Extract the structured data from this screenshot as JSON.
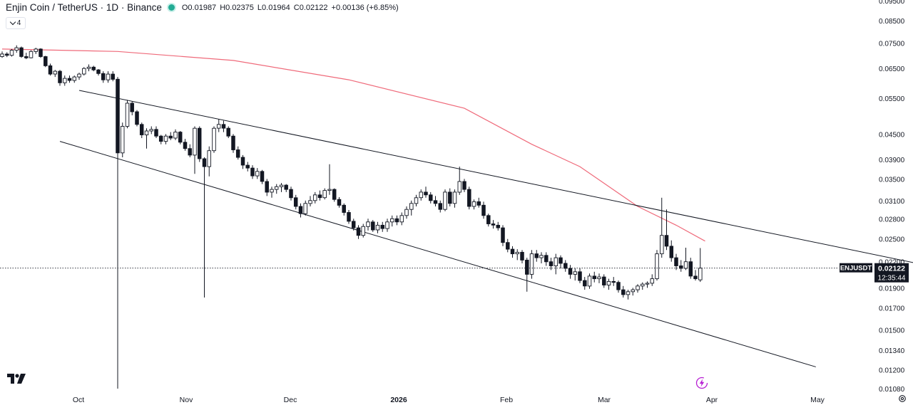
{
  "header": {
    "title": "Enjin Coin / TetherUS · 1D · Binance",
    "open": "O0.01987",
    "high": "H0.02375",
    "low": "L0.01964",
    "close": "C0.02122",
    "change": "+0.00136 (+6.85%)",
    "indicator_count": "4"
  },
  "price_label": {
    "symbol": "ENJUSDT",
    "price": "0.02122",
    "countdown": "12:35:44"
  },
  "colors": {
    "ma": "#ef6a7a",
    "accent": "#22ab94",
    "lines": "#131722",
    "bolt": "#b71fd3"
  },
  "icons": {
    "logo": "tradingview-logo-icon",
    "bolt": "lightning-icon",
    "settings": "gear-icon"
  },
  "chart_data": {
    "type": "candlestick",
    "y_scale": "log",
    "y_ticks": [
      "0.09500",
      "0.08500",
      "0.07500",
      "0.06500",
      "0.05500",
      "0.04500",
      "0.03900",
      "0.03500",
      "0.03100",
      "0.02800",
      "0.02500",
      "0.02200",
      "0.01900",
      "0.01700",
      "0.01500",
      "0.01340",
      "0.01200",
      "0.01080"
    ],
    "x_ticks": [
      "Oct",
      "Nov",
      "Dec",
      "2026",
      "Feb",
      "Mar",
      "Apr",
      "May"
    ],
    "candles": [
      [
        0.0695,
        0.0715,
        0.069,
        0.0705
      ],
      [
        0.0705,
        0.0712,
        0.0693,
        0.07
      ],
      [
        0.07,
        0.0725,
        0.0695,
        0.072
      ],
      [
        0.072,
        0.074,
        0.071,
        0.073
      ],
      [
        0.073,
        0.0735,
        0.069,
        0.0695
      ],
      [
        0.0695,
        0.071,
        0.0685,
        0.069
      ],
      [
        0.069,
        0.072,
        0.0688,
        0.0715
      ],
      [
        0.0715,
        0.073,
        0.0705,
        0.0725
      ],
      [
        0.0725,
        0.0728,
        0.069,
        0.0695
      ],
      [
        0.0695,
        0.0698,
        0.0655,
        0.066
      ],
      [
        0.066,
        0.0668,
        0.0625,
        0.063
      ],
      [
        0.063,
        0.0645,
        0.062,
        0.064
      ],
      [
        0.064,
        0.0645,
        0.059,
        0.06
      ],
      [
        0.06,
        0.0625,
        0.059,
        0.0615
      ],
      [
        0.0615,
        0.0625,
        0.06,
        0.0608
      ],
      [
        0.0608,
        0.0625,
        0.06,
        0.062
      ],
      [
        0.062,
        0.0635,
        0.061,
        0.063
      ],
      [
        0.063,
        0.0655,
        0.0625,
        0.065
      ],
      [
        0.065,
        0.0665,
        0.064,
        0.0655
      ],
      [
        0.0655,
        0.066,
        0.064,
        0.0645
      ],
      [
        0.0645,
        0.0648,
        0.0625,
        0.0632
      ],
      [
        0.0632,
        0.064,
        0.06,
        0.061
      ],
      [
        0.061,
        0.064,
        0.06,
        0.063
      ],
      [
        0.063,
        0.064,
        0.0605,
        0.0612
      ],
      [
        0.0612,
        0.062,
        0.0108,
        0.0405
      ],
      [
        0.0405,
        0.048,
        0.0395,
        0.047
      ],
      [
        0.047,
        0.0545,
        0.0465,
        0.0535
      ],
      [
        0.0535,
        0.054,
        0.05,
        0.051
      ],
      [
        0.051,
        0.0515,
        0.047,
        0.0475
      ],
      [
        0.0475,
        0.048,
        0.044,
        0.0448
      ],
      [
        0.0448,
        0.0465,
        0.0415,
        0.0458
      ],
      [
        0.0458,
        0.047,
        0.045,
        0.0462
      ],
      [
        0.0462,
        0.047,
        0.044,
        0.0445
      ],
      [
        0.0445,
        0.0448,
        0.0425,
        0.0432
      ],
      [
        0.0432,
        0.045,
        0.0425,
        0.0445
      ],
      [
        0.0445,
        0.0455,
        0.0435,
        0.044
      ],
      [
        0.044,
        0.0462,
        0.0435,
        0.0455
      ],
      [
        0.0455,
        0.0458,
        0.0425,
        0.043
      ],
      [
        0.043,
        0.0438,
        0.041,
        0.0415
      ],
      [
        0.0415,
        0.0425,
        0.0395,
        0.04
      ],
      [
        0.04,
        0.047,
        0.036,
        0.0465
      ],
      [
        0.0465,
        0.047,
        0.0385,
        0.0392
      ],
      [
        0.0392,
        0.0395,
        0.018,
        0.0375
      ],
      [
        0.0375,
        0.042,
        0.0355,
        0.041
      ],
      [
        0.041,
        0.047,
        0.0405,
        0.0465
      ],
      [
        0.0465,
        0.049,
        0.0455,
        0.0475
      ],
      [
        0.0475,
        0.0485,
        0.0455,
        0.0465
      ],
      [
        0.0465,
        0.047,
        0.044,
        0.0445
      ],
      [
        0.0445,
        0.045,
        0.0405,
        0.0412
      ],
      [
        0.0412,
        0.042,
        0.039,
        0.0395
      ],
      [
        0.0395,
        0.04,
        0.037,
        0.0378
      ],
      [
        0.0378,
        0.0385,
        0.0365,
        0.0372
      ],
      [
        0.0372,
        0.0378,
        0.035,
        0.0356
      ],
      [
        0.0356,
        0.0372,
        0.035,
        0.0365
      ],
      [
        0.0365,
        0.0368,
        0.034,
        0.0345
      ],
      [
        0.0345,
        0.035,
        0.0318,
        0.0325
      ],
      [
        0.0325,
        0.0335,
        0.0315,
        0.033
      ],
      [
        0.033,
        0.034,
        0.0322,
        0.0335
      ],
      [
        0.0335,
        0.0342,
        0.0325,
        0.0338
      ],
      [
        0.0338,
        0.034,
        0.0325,
        0.033
      ],
      [
        0.033,
        0.0335,
        0.031,
        0.0315
      ],
      [
        0.0315,
        0.032,
        0.0295,
        0.03
      ],
      [
        0.03,
        0.0305,
        0.0282,
        0.0288
      ],
      [
        0.0288,
        0.031,
        0.0285,
        0.0305
      ],
      [
        0.0305,
        0.0318,
        0.03,
        0.031
      ],
      [
        0.031,
        0.0325,
        0.0305,
        0.032
      ],
      [
        0.032,
        0.0328,
        0.031,
        0.0315
      ],
      [
        0.0315,
        0.0332,
        0.0312,
        0.0328
      ],
      [
        0.0328,
        0.038,
        0.032,
        0.033
      ],
      [
        0.033,
        0.0332,
        0.0308,
        0.0312
      ],
      [
        0.0312,
        0.0316,
        0.0298,
        0.0302
      ],
      [
        0.0302,
        0.0305,
        0.0285,
        0.029
      ],
      [
        0.029,
        0.0294,
        0.0272,
        0.0276
      ],
      [
        0.0276,
        0.028,
        0.0262,
        0.0266
      ],
      [
        0.0266,
        0.027,
        0.025,
        0.0255
      ],
      [
        0.0255,
        0.0272,
        0.0252,
        0.0268
      ],
      [
        0.0268,
        0.028,
        0.0262,
        0.0275
      ],
      [
        0.0275,
        0.0278,
        0.026,
        0.0263
      ],
      [
        0.0263,
        0.0275,
        0.0258,
        0.027
      ],
      [
        0.027,
        0.0275,
        0.026,
        0.0265
      ],
      [
        0.0265,
        0.028,
        0.026,
        0.0275
      ],
      [
        0.0275,
        0.0285,
        0.0268,
        0.028
      ],
      [
        0.028,
        0.0285,
        0.027,
        0.0275
      ],
      [
        0.0275,
        0.029,
        0.027,
        0.0285
      ],
      [
        0.0285,
        0.03,
        0.028,
        0.0295
      ],
      [
        0.0295,
        0.031,
        0.0285,
        0.0305
      ],
      [
        0.0305,
        0.032,
        0.03,
        0.0315
      ],
      [
        0.0315,
        0.033,
        0.031,
        0.0325
      ],
      [
        0.0325,
        0.0335,
        0.0315,
        0.032
      ],
      [
        0.032,
        0.0325,
        0.0305,
        0.031
      ],
      [
        0.031,
        0.0318,
        0.03,
        0.0305
      ],
      [
        0.0305,
        0.031,
        0.029,
        0.0295
      ],
      [
        0.0295,
        0.033,
        0.0292,
        0.0325
      ],
      [
        0.0325,
        0.0332,
        0.03,
        0.0305
      ],
      [
        0.0305,
        0.033,
        0.0298,
        0.0325
      ],
      [
        0.0325,
        0.0375,
        0.032,
        0.0345
      ],
      [
        0.0345,
        0.035,
        0.0325,
        0.033
      ],
      [
        0.033,
        0.0335,
        0.0295,
        0.03
      ],
      [
        0.03,
        0.0312,
        0.0295,
        0.0308
      ],
      [
        0.0308,
        0.0315,
        0.0298,
        0.0302
      ],
      [
        0.0302,
        0.0308,
        0.028,
        0.0285
      ],
      [
        0.0285,
        0.0288,
        0.0268,
        0.0272
      ],
      [
        0.0272,
        0.0278,
        0.0265,
        0.027
      ],
      [
        0.027,
        0.0275,
        0.0262,
        0.0266
      ],
      [
        0.0266,
        0.027,
        0.024,
        0.0245
      ],
      [
        0.0245,
        0.025,
        0.0232,
        0.0236
      ],
      [
        0.0236,
        0.024,
        0.0225,
        0.023
      ],
      [
        0.023,
        0.0236,
        0.0222,
        0.0232
      ],
      [
        0.0232,
        0.0235,
        0.0218,
        0.0222
      ],
      [
        0.0222,
        0.0225,
        0.0186,
        0.0205
      ],
      [
        0.0205,
        0.0235,
        0.02,
        0.023
      ],
      [
        0.023,
        0.0235,
        0.022,
        0.0225
      ],
      [
        0.0225,
        0.0232,
        0.0218,
        0.0228
      ],
      [
        0.0228,
        0.0232,
        0.0215,
        0.022
      ],
      [
        0.022,
        0.0225,
        0.021,
        0.0215
      ],
      [
        0.0215,
        0.023,
        0.0205,
        0.0225
      ],
      [
        0.0225,
        0.0228,
        0.0212,
        0.0218
      ],
      [
        0.0218,
        0.0222,
        0.0208,
        0.0212
      ],
      [
        0.0212,
        0.0216,
        0.02,
        0.0205
      ],
      [
        0.0205,
        0.0212,
        0.0198,
        0.0208
      ],
      [
        0.0208,
        0.0212,
        0.0195,
        0.0198
      ],
      [
        0.0198,
        0.0202,
        0.0188,
        0.0192
      ],
      [
        0.0192,
        0.0206,
        0.0189,
        0.0203
      ],
      [
        0.0203,
        0.0208,
        0.0196,
        0.02
      ],
      [
        0.02,
        0.0206,
        0.0195,
        0.0202
      ],
      [
        0.0202,
        0.0205,
        0.019,
        0.0193
      ],
      [
        0.0193,
        0.02,
        0.0188,
        0.0197
      ],
      [
        0.0197,
        0.0202,
        0.0192,
        0.0196
      ],
      [
        0.0196,
        0.0198,
        0.0185,
        0.0188
      ],
      [
        0.0188,
        0.0192,
        0.018,
        0.0183
      ],
      [
        0.0183,
        0.0188,
        0.0178,
        0.0186
      ],
      [
        0.0186,
        0.019,
        0.0182,
        0.0188
      ],
      [
        0.0188,
        0.0194,
        0.0185,
        0.0192
      ],
      [
        0.0192,
        0.0196,
        0.0188,
        0.0194
      ],
      [
        0.0194,
        0.0197,
        0.019,
        0.0195
      ],
      [
        0.0195,
        0.0205,
        0.0192,
        0.02
      ],
      [
        0.02,
        0.0235,
        0.0198,
        0.023
      ],
      [
        0.023,
        0.0315,
        0.0225,
        0.0255
      ],
      [
        0.0255,
        0.0295,
        0.0235,
        0.024
      ],
      [
        0.024,
        0.0248,
        0.022,
        0.0225
      ],
      [
        0.0225,
        0.023,
        0.021,
        0.0215
      ],
      [
        0.0215,
        0.0222,
        0.0208,
        0.0212
      ],
      [
        0.0212,
        0.0238,
        0.021,
        0.022
      ],
      [
        0.022,
        0.0225,
        0.02,
        0.0203
      ],
      [
        0.0203,
        0.021,
        0.0198,
        0.02
      ],
      [
        0.01987,
        0.02375,
        0.01964,
        0.02122
      ]
    ],
    "ma_points": [
      [
        0,
        0.0725
      ],
      [
        24,
        0.0715
      ],
      [
        48,
        0.068
      ],
      [
        72,
        0.061
      ],
      [
        96,
        0.052
      ],
      [
        110,
        0.0425
      ],
      [
        120,
        0.0375
      ],
      [
        132,
        0.03
      ],
      [
        140,
        0.027
      ],
      [
        146,
        0.0247
      ]
    ],
    "trendlines": [
      {
        "from": [
          16,
          0.0575
        ],
        "to": [
          190,
          0.0218
        ]
      },
      {
        "from": [
          12,
          0.0432
        ],
        "to": [
          169,
          0.0122
        ]
      }
    ]
  }
}
